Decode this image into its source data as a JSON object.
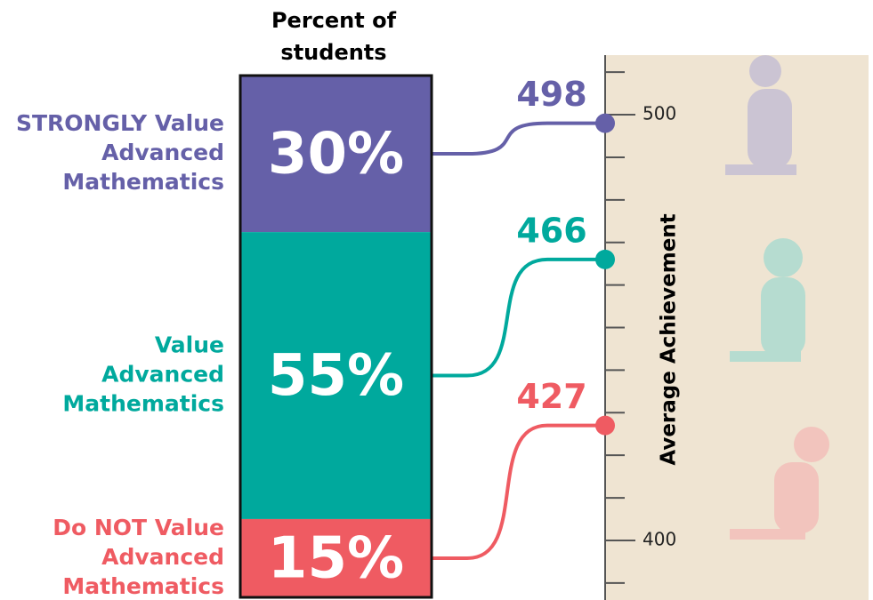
{
  "chart_data": {
    "type": "value-achievement",
    "title": [
      "Percent of",
      "students"
    ],
    "y_label": "Average Achievement",
    "categories": [
      [
        "STRONGLY Value",
        "Advanced",
        "Mathematics"
      ],
      [
        "Value",
        "Advanced",
        "Mathematics"
      ],
      [
        "Do NOT Value",
        "Advanced",
        "Mathematics"
      ]
    ],
    "values": [
      30,
      55,
      15
    ],
    "value_labels": [
      "30%",
      "55%",
      "15%"
    ],
    "achievements": [
      498,
      466,
      427
    ],
    "colors": [
      "#6560a8",
      "#00a99d",
      "#ef5b62"
    ],
    "ylim": [
      386,
      514
    ],
    "yticks": [
      400,
      500
    ],
    "minor_yticks": [
      390,
      410,
      420,
      430,
      440,
      450,
      460,
      470,
      480,
      490,
      510
    ]
  }
}
